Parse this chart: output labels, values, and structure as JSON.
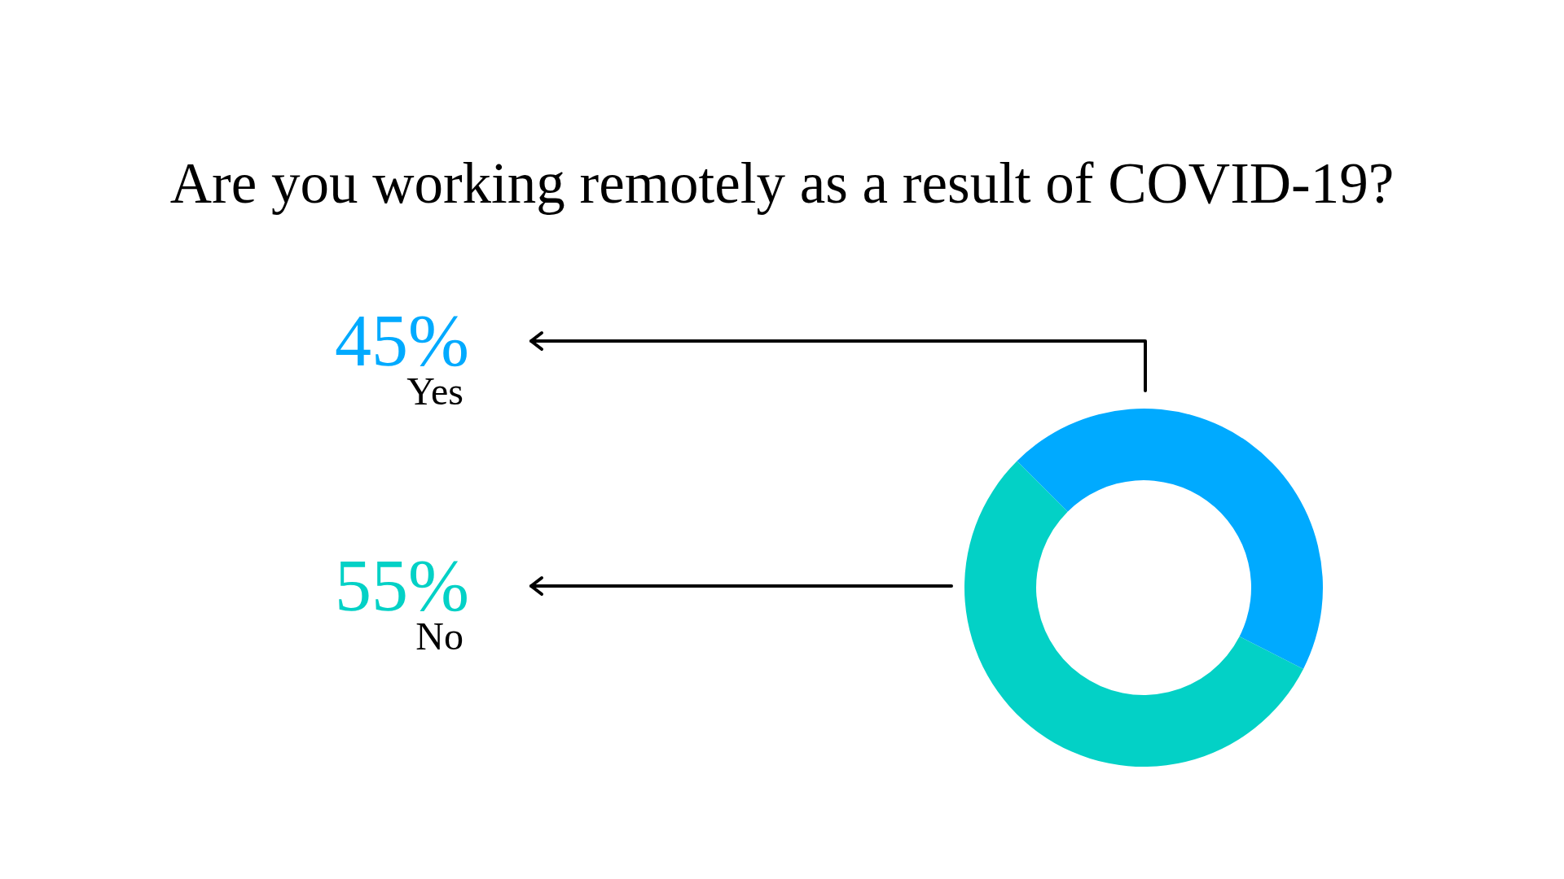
{
  "chart_data": {
    "type": "donut",
    "title": "Are you working remotely as a result of COVID-19?",
    "categories": [
      "Yes",
      "No"
    ],
    "values": [
      45,
      55
    ],
    "colors": [
      "#00aaff",
      "#03d1c6"
    ],
    "value_labels": [
      "45%",
      "55%"
    ]
  }
}
